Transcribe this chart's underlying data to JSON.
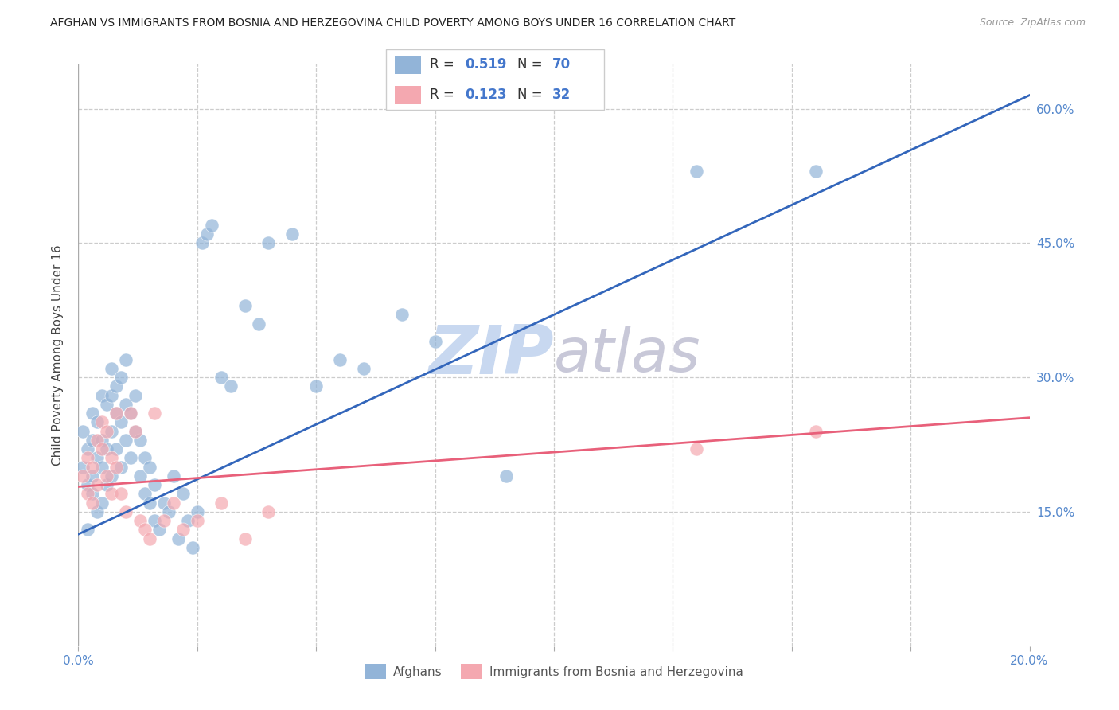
{
  "title": "AFGHAN VS IMMIGRANTS FROM BOSNIA AND HERZEGOVINA CHILD POVERTY AMONG BOYS UNDER 16 CORRELATION CHART",
  "source": "Source: ZipAtlas.com",
  "ylabel": "Child Poverty Among Boys Under 16",
  "xlim": [
    0,
    0.2
  ],
  "ylim": [
    0,
    0.65
  ],
  "xtick_vals": [
    0.0,
    0.025,
    0.05,
    0.075,
    0.1,
    0.125,
    0.15,
    0.175,
    0.2
  ],
  "xtick_label_positions": [
    0.0,
    0.2
  ],
  "xtick_labels": [
    "0.0%",
    "20.0%"
  ],
  "ytick_values": [
    0.15,
    0.3,
    0.45,
    0.6
  ],
  "ytick_labels": [
    "15.0%",
    "30.0%",
    "45.0%",
    "60.0%"
  ],
  "legend_R1": "0.519",
  "legend_N1": "70",
  "legend_R2": "0.123",
  "legend_N2": "32",
  "blue_color": "#92B4D8",
  "pink_color": "#F4A8B0",
  "line_blue": "#3366BB",
  "line_pink": "#E8607A",
  "blue_line_x0": 0.0,
  "blue_line_y0": 0.125,
  "blue_line_x1": 0.2,
  "blue_line_y1": 0.615,
  "pink_line_x0": 0.0,
  "pink_line_y0": 0.178,
  "pink_line_x1": 0.2,
  "pink_line_y1": 0.255,
  "afghans_x": [
    0.001,
    0.001,
    0.002,
    0.002,
    0.002,
    0.003,
    0.003,
    0.003,
    0.003,
    0.004,
    0.004,
    0.004,
    0.005,
    0.005,
    0.005,
    0.005,
    0.006,
    0.006,
    0.006,
    0.007,
    0.007,
    0.007,
    0.007,
    0.008,
    0.008,
    0.008,
    0.009,
    0.009,
    0.009,
    0.01,
    0.01,
    0.01,
    0.011,
    0.011,
    0.012,
    0.012,
    0.013,
    0.013,
    0.014,
    0.014,
    0.015,
    0.015,
    0.016,
    0.016,
    0.017,
    0.018,
    0.019,
    0.02,
    0.021,
    0.022,
    0.023,
    0.024,
    0.025,
    0.026,
    0.027,
    0.028,
    0.03,
    0.032,
    0.035,
    0.038,
    0.04,
    0.045,
    0.05,
    0.055,
    0.06,
    0.068,
    0.075,
    0.09,
    0.13,
    0.155
  ],
  "afghans_y": [
    0.2,
    0.24,
    0.13,
    0.18,
    0.22,
    0.17,
    0.19,
    0.23,
    0.26,
    0.15,
    0.21,
    0.25,
    0.16,
    0.2,
    0.23,
    0.28,
    0.18,
    0.22,
    0.27,
    0.19,
    0.24,
    0.28,
    0.31,
    0.22,
    0.26,
    0.29,
    0.2,
    0.25,
    0.3,
    0.23,
    0.27,
    0.32,
    0.21,
    0.26,
    0.24,
    0.28,
    0.19,
    0.23,
    0.17,
    0.21,
    0.16,
    0.2,
    0.14,
    0.18,
    0.13,
    0.16,
    0.15,
    0.19,
    0.12,
    0.17,
    0.14,
    0.11,
    0.15,
    0.45,
    0.46,
    0.47,
    0.3,
    0.29,
    0.38,
    0.36,
    0.45,
    0.46,
    0.29,
    0.32,
    0.31,
    0.37,
    0.34,
    0.19,
    0.53,
    0.53
  ],
  "bosnia_x": [
    0.001,
    0.002,
    0.002,
    0.003,
    0.003,
    0.004,
    0.004,
    0.005,
    0.005,
    0.006,
    0.006,
    0.007,
    0.007,
    0.008,
    0.008,
    0.009,
    0.01,
    0.011,
    0.012,
    0.013,
    0.014,
    0.015,
    0.016,
    0.018,
    0.02,
    0.022,
    0.025,
    0.03,
    0.035,
    0.04,
    0.13,
    0.155
  ],
  "bosnia_y": [
    0.19,
    0.17,
    0.21,
    0.16,
    0.2,
    0.23,
    0.18,
    0.22,
    0.25,
    0.19,
    0.24,
    0.17,
    0.21,
    0.26,
    0.2,
    0.17,
    0.15,
    0.26,
    0.24,
    0.14,
    0.13,
    0.12,
    0.26,
    0.14,
    0.16,
    0.13,
    0.14,
    0.16,
    0.12,
    0.15,
    0.22,
    0.24
  ],
  "watermark_zip_color": "#C8D8F0",
  "watermark_atlas_color": "#C8C8D8",
  "grid_color": "#CCCCCC",
  "border_color": "#AAAAAA",
  "tick_label_color": "#5588CC",
  "text_color": "#444444",
  "source_color": "#999999",
  "legend_R_color": "#333333",
  "legend_val_color": "#4477CC"
}
